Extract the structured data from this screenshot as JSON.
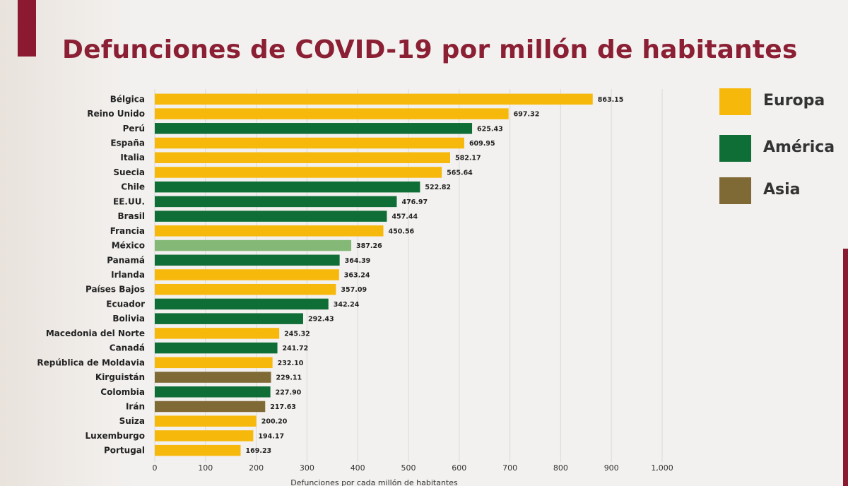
{
  "page": {
    "title": "Defunciones de COVID-19 por millón de habitantes"
  },
  "colors": {
    "Europa": "#f7b80c",
    "América": "#0f6e35",
    "Asia": "#7f6934",
    "highlight": "#84b877",
    "title": "#8b1f34",
    "accent": "#8b1a30",
    "grid": "#d9d9d9"
  },
  "legend": [
    {
      "label": "Europa",
      "color": "#f7b80c"
    },
    {
      "label": "América",
      "color": "#0f6e35"
    },
    {
      "label": "Asia",
      "color": "#7f6934"
    }
  ],
  "chart_data": {
    "type": "bar",
    "orientation": "horizontal",
    "title": "Defunciones de COVID-19 por millón de habitantes",
    "xlabel": "Defunciones por cada millón de habitantes",
    "ylabel": "",
    "xlim": [
      0,
      1000
    ],
    "x_ticks": [
      "0",
      "100",
      "200",
      "300",
      "400",
      "500",
      "600",
      "700",
      "800",
      "900",
      "1,000"
    ],
    "grid": true,
    "legend_position": "top-right",
    "categories": [
      "Bélgica",
      "Reino Unido",
      "Perú",
      "España",
      "Italia",
      "Suecia",
      "Chile",
      "EE.UU.",
      "Brasil",
      "Francia",
      "México",
      "Panamá",
      "Irlanda",
      "Países Bajos",
      "Ecuador",
      "Bolivia",
      "Macedonia del Norte",
      "Canadá",
      "República de Moldavia",
      "Kirguistán",
      "Colombia",
      "Irán",
      "Suiza",
      "Luxemburgo",
      "Portugal"
    ],
    "values": [
      863.15,
      697.32,
      625.43,
      609.95,
      582.17,
      565.64,
      522.82,
      476.97,
      457.44,
      450.56,
      387.26,
      364.39,
      363.24,
      357.09,
      342.24,
      292.43,
      245.32,
      241.72,
      232.1,
      229.11,
      227.9,
      217.63,
      200.2,
      194.17,
      169.23
    ],
    "value_labels": [
      "863.15",
      "697.32",
      "625.43",
      "609.95",
      "582.17",
      "565.64",
      "522.82",
      "476.97",
      "457.44",
      "450.56",
      "387.26",
      "364.39",
      "363.24",
      "357.09",
      "342.24",
      "292.43",
      "245.32",
      "241.72",
      "232.10",
      "229.11",
      "227.90",
      "217.63",
      "200.20",
      "194.17",
      "169.23"
    ],
    "groups": [
      "Europa",
      "Europa",
      "América",
      "Europa",
      "Europa",
      "Europa",
      "América",
      "América",
      "América",
      "Europa",
      "highlight",
      "América",
      "Europa",
      "Europa",
      "América",
      "América",
      "Europa",
      "América",
      "Europa",
      "Asia",
      "América",
      "Asia",
      "Europa",
      "Europa",
      "Europa"
    ]
  }
}
